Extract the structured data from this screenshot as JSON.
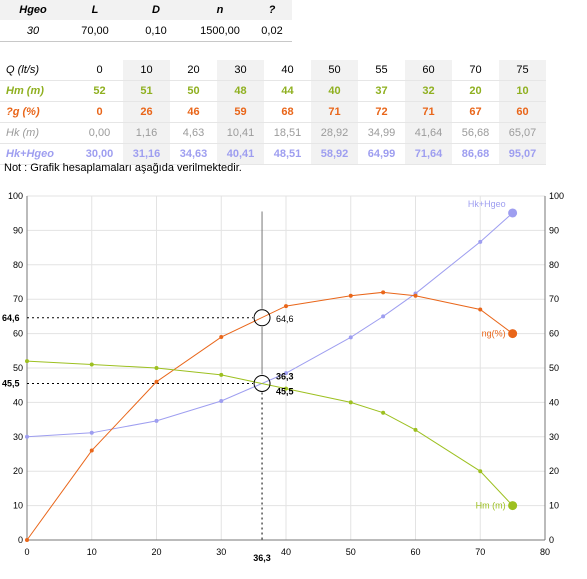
{
  "top_table": {
    "headers": [
      "Hgeo",
      "L",
      "D",
      "n",
      "?"
    ],
    "values": [
      "30",
      "70,00",
      "0,10",
      "1500,00",
      "0,02"
    ]
  },
  "main_table": {
    "rows": [
      {
        "label": "Q  (lt/s)",
        "cls": "r-q",
        "cells": [
          "0",
          "10",
          "20",
          "30",
          "40",
          "50",
          "55",
          "60",
          "70",
          "75"
        ]
      },
      {
        "label": "Hm (m)",
        "cls": "r-hm",
        "cells": [
          "52",
          "51",
          "50",
          "48",
          "44",
          "40",
          "37",
          "32",
          "20",
          "10"
        ]
      },
      {
        "label": "?g  (%)",
        "cls": "r-ng",
        "cells": [
          "0",
          "26",
          "46",
          "59",
          "68",
          "71",
          "72",
          "71",
          "67",
          "60"
        ]
      },
      {
        "label": "Hk (m)",
        "cls": "r-hk",
        "cells": [
          "0,00",
          "1,16",
          "4,63",
          "10,41",
          "18,51",
          "28,92",
          "34,99",
          "41,64",
          "56,68",
          "65,07"
        ]
      },
      {
        "label": "Hk+Hgeo",
        "cls": "r-hkg",
        "cells": [
          "30,00",
          "31,16",
          "34,63",
          "40,41",
          "48,51",
          "58,92",
          "64,99",
          "71,64",
          "86,68",
          "95,07"
        ]
      }
    ]
  },
  "note": "Not : Grafik hesaplamaları aşağıda verilmektedir.",
  "chart_data": {
    "type": "line",
    "x": [
      0,
      10,
      20,
      30,
      40,
      50,
      55,
      60,
      70,
      75
    ],
    "xlim": [
      0,
      80
    ],
    "xticks": [
      0,
      10,
      20,
      30,
      40,
      50,
      60,
      70,
      80
    ],
    "ylim": [
      0,
      100
    ],
    "yticks": [
      0,
      10,
      20,
      30,
      40,
      50,
      60,
      70,
      80,
      90,
      100
    ],
    "series": [
      {
        "name": "Hk+Hgeo",
        "color": "#9e9ef0",
        "values": [
          30,
          31.16,
          34.63,
          40.41,
          48.51,
          58.92,
          64.99,
          71.64,
          86.68,
          95.07
        ]
      },
      {
        "name": "ng(%)",
        "color": "#e9661a",
        "values": [
          0,
          26,
          46,
          59,
          68,
          71,
          72,
          71,
          67,
          60
        ]
      },
      {
        "name": "Hm (m)",
        "color": "#9dc020",
        "values": [
          52,
          51,
          50,
          48,
          44,
          40,
          37,
          32,
          20,
          10
        ]
      }
    ],
    "operating_point": {
      "x": 36.3,
      "x_label": "36,3",
      "efficiency": 64.6,
      "efficiency_label": "64,6",
      "head": 45.5,
      "head_label": "45,5",
      "right_labels": [
        "64,6",
        "36,3",
        "45,5"
      ]
    },
    "grid": true
  }
}
